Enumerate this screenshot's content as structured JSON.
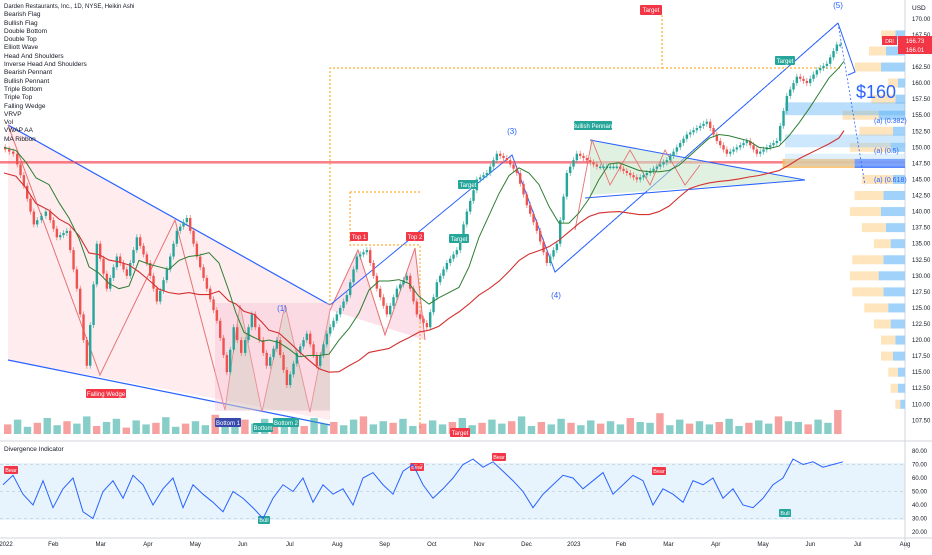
{
  "header": {
    "title": "Darden Restaurants, Inc., 1D, NYSE, Heikin Ashi",
    "currency": "USD"
  },
  "indicators": [
    "Bearish Flag",
    "Bullish Flag",
    "Double Bottom",
    "Double Top",
    "Elliott Wave",
    "Head And Shoulders",
    "Inverse Head And Shoulders",
    "Bearish Pennant",
    "Bullish Pennant",
    "Triple Bottom",
    "Triple Top",
    "Falling Wedge",
    "VRVP",
    "Vol",
    "VWAP AA",
    "MA Ribbon"
  ],
  "oscillator_label": "Divergence Indicator",
  "price_tags": {
    "ticker": "DRI",
    "last": "166.73",
    "second": "166.01"
  },
  "annotations": {
    "price_target": "$160",
    "fib_382": "(a) (0.382)",
    "fib_5": "(a) (0.5)",
    "fib_618": "(a) (0.618)",
    "wave_1": "(1)",
    "wave_3": "(3)",
    "wave_4": "(4)",
    "wave_5": "(5)",
    "falling_wedge": "Falling Wedge",
    "bottom_1": "Bottom 1",
    "bottom_2": "Bottom 2",
    "bottom": "Bottom",
    "top_1": "Top 1",
    "top_2": "Top 2",
    "bullish_pennant": "Bullish Pennant",
    "target": "Target",
    "bear": "Bear",
    "bull": "Bull"
  },
  "colors": {
    "up": "#26a69a",
    "down": "#ef5350",
    "trendline": "#2962ff",
    "resistance": "#f23645",
    "ma_long": "#d32f2f",
    "ma_mid": "#2e7d32",
    "vwap": "#1b5e20",
    "osc_line": "#2962ff",
    "pattern_fill": "#f8bbd0",
    "pennant_fill": "#c8e6c9",
    "vp_up": "#90caf9",
    "vp_up_strong": "#2962ff",
    "vp_down": "#ffe0b2",
    "vp_down_strong": "#ffb74d"
  },
  "chart_data": [
    {
      "type": "line",
      "title": "Darden Restaurants, Inc., 1D, NYSE, Heikin Ashi",
      "x_labels": [
        "2022",
        "Feb",
        "Mar",
        "Apr",
        "May",
        "Jun",
        "Jul",
        "Aug",
        "Sep",
        "Oct",
        "Nov",
        "Dec",
        "2023",
        "Feb",
        "Mar",
        "Apr",
        "May",
        "Jun",
        "Jul",
        "Aug"
      ],
      "y_ticks": [
        "170.00",
        "167.50",
        "162.50",
        "160.00",
        "157.50",
        "155.00",
        "152.50",
        "150.00",
        "147.50",
        "145.00",
        "142.50",
        "140.00",
        "137.50",
        "135.00",
        "132.50",
        "130.00",
        "127.50",
        "125.00",
        "122.50",
        "120.00",
        "117.50",
        "115.00",
        "112.50",
        "110.00",
        "107.50"
      ],
      "ylim": [
        106,
        172
      ],
      "series": [
        {
          "x": [
            0,
            12,
            22,
            32,
            45,
            55,
            65,
            75,
            85,
            95,
            105,
            115,
            125,
            135,
            145,
            155,
            165,
            175,
            185,
            195,
            205,
            215,
            225,
            232,
            240,
            250,
            258,
            265,
            275,
            285,
            295,
            305,
            315,
            325,
            335,
            345,
            355,
            365,
            375,
            385,
            395,
            405,
            415,
            425,
            435,
            445,
            455,
            465,
            475,
            485,
            495,
            505,
            515,
            525,
            535,
            545,
            555,
            565,
            575,
            585,
            595,
            605,
            615,
            625,
            635,
            645,
            655,
            665,
            675,
            685,
            695,
            705,
            715,
            725,
            735,
            745,
            755,
            765,
            775,
            785,
            795,
            805,
            815,
            825,
            835,
            840
          ],
          "values": [
            150,
            149,
            144,
            138,
            140,
            136,
            137,
            128,
            116,
            135,
            128,
            133,
            130,
            136,
            132,
            126,
            131,
            137,
            139,
            133,
            128,
            123,
            115,
            122,
            118,
            124,
            120,
            116,
            120,
            113,
            118,
            121,
            116,
            121,
            124,
            127,
            133,
            134,
            128,
            124,
            128,
            130,
            124,
            122,
            129,
            132,
            134,
            140,
            145,
            146,
            149,
            148,
            146,
            141,
            137,
            132,
            135,
            146,
            149,
            148,
            147,
            147,
            147,
            146,
            145,
            146,
            147,
            148,
            150,
            152,
            153,
            154,
            151,
            149,
            150,
            151,
            149,
            150,
            151,
            158,
            161,
            160,
            162,
            163,
            166,
            166
          ]
        }
      ]
    },
    {
      "type": "line",
      "title": "Divergence Indicator",
      "y_ticks": [
        "80.00",
        "70.00",
        "60.00",
        "50.00",
        "40.00",
        "30.00",
        "20.00"
      ],
      "ylim": [
        20,
        80
      ],
      "series": [
        {
          "x": [
            0,
            10,
            20,
            30,
            40,
            50,
            60,
            70,
            80,
            90,
            100,
            110,
            120,
            130,
            140,
            150,
            160,
            170,
            180,
            190,
            200,
            210,
            220,
            230,
            240,
            250,
            260,
            270,
            280,
            290,
            300,
            310,
            320,
            330,
            340,
            350,
            360,
            370,
            380,
            390,
            400,
            410,
            420,
            430,
            440,
            450,
            460,
            470,
            480,
            490,
            500,
            510,
            520,
            530,
            540,
            550,
            560,
            570,
            580,
            590,
            600,
            610,
            620,
            630,
            640,
            650,
            660,
            670,
            680,
            690,
            700,
            710,
            720,
            730,
            740,
            750,
            760,
            770,
            780,
            790,
            800,
            810,
            820,
            830,
            840
          ],
          "values": [
            55,
            62,
            48,
            40,
            58,
            38,
            52,
            60,
            35,
            30,
            50,
            58,
            45,
            62,
            55,
            40,
            52,
            60,
            38,
            55,
            48,
            42,
            35,
            50,
            45,
            38,
            30,
            45,
            55,
            50,
            60,
            42,
            55,
            48,
            52,
            40,
            60,
            64,
            55,
            48,
            65,
            70,
            55,
            45,
            52,
            60,
            70,
            74,
            68,
            72,
            65,
            58,
            50,
            38,
            48,
            55,
            62,
            60,
            52,
            58,
            64,
            48,
            55,
            62,
            58,
            40,
            52,
            48,
            42,
            58,
            55,
            60,
            45,
            52,
            40,
            38,
            45,
            55,
            60,
            74,
            70,
            72,
            68,
            70,
            72
          ]
        }
      ]
    },
    {
      "type": "bar",
      "title": "Vol",
      "values": [
        12,
        18,
        9,
        14,
        20,
        11,
        16,
        13,
        22,
        10,
        15,
        19,
        8,
        17,
        12,
        14,
        21,
        9,
        13,
        16,
        11,
        24,
        15,
        10,
        18,
        13,
        19,
        12,
        14,
        17,
        10,
        20,
        13,
        15,
        11,
        18,
        22,
        12,
        16,
        14,
        19,
        10,
        13,
        17,
        12,
        15,
        20,
        11,
        14,
        18,
        13,
        16,
        22,
        10,
        15,
        12,
        19,
        14,
        11,
        17,
        13,
        16,
        12,
        20,
        15,
        14,
        26,
        11,
        18,
        13,
        16,
        12,
        15,
        19,
        10,
        14,
        17,
        13,
        22,
        16,
        15,
        12,
        18,
        14,
        30
      ]
    },
    {
      "type": "bar",
      "title": "VRVP",
      "categories": [
        "167.5",
        "165",
        "162.5",
        "160",
        "157.5",
        "155",
        "152.5",
        "150",
        "147.5",
        "145",
        "142.5",
        "140",
        "137.5",
        "135",
        "132.5",
        "130",
        "127.5",
        "125",
        "122.5",
        "120",
        "117.5",
        "115",
        "112.5",
        "110"
      ],
      "series": [
        {
          "name": "up",
          "values": [
            8,
            16,
            20,
            6,
            8,
            22,
            10,
            12,
            42,
            10,
            18,
            20,
            16,
            12,
            18,
            22,
            18,
            14,
            12,
            8,
            10,
            6,
            6,
            4
          ]
        },
        {
          "name": "down",
          "values": [
            12,
            14,
            22,
            8,
            20,
            30,
            28,
            34,
            60,
            26,
            24,
            26,
            20,
            14,
            26,
            24,
            26,
            20,
            14,
            12,
            10,
            8,
            6,
            4
          ]
        }
      ]
    }
  ]
}
